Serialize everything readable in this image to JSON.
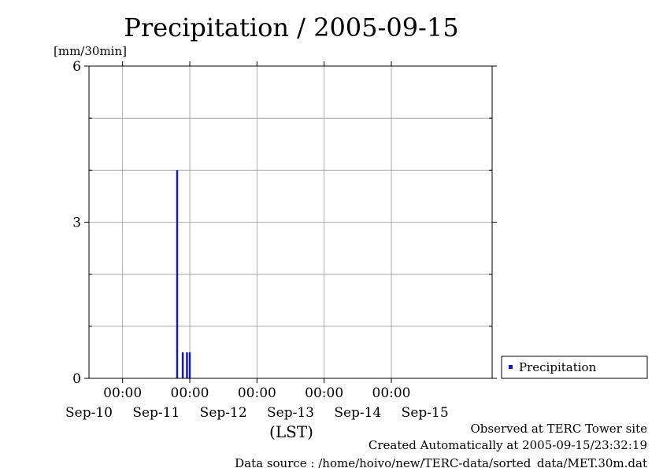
{
  "title": "Precipitation / 2005-09-15",
  "unit_label": "[mm/30min]",
  "x_axis_label": "(LST)",
  "footer": {
    "line1": "Observed at TERC Tower site",
    "line2": "Created Automatically at 2005-09-15/23:32:19",
    "line3": "Data source : /home/hoivo/new/TERC-data/sorted_data/MET.30m.dat"
  },
  "colors": {
    "series": "#1a1aa8",
    "grid": "#9a9a9a"
  },
  "chart_data": {
    "type": "bar",
    "title": "Precipitation / 2005-09-15",
    "ylabel": "[mm/30min]",
    "xlabel": "(LST)",
    "ylim": [
      0,
      6
    ],
    "y_ticks": [
      0,
      3,
      6
    ],
    "y_minor_gridlines": [
      1,
      2,
      4,
      5
    ],
    "xlim": [
      "2005-09-09 12:00",
      "2005-09-15 12:00"
    ],
    "x_gridlines": [
      "2005-09-10 00:00",
      "2005-09-11 00:00",
      "2005-09-12 00:00",
      "2005-09-13 00:00",
      "2005-09-14 00:00"
    ],
    "x_tick_times": [
      "00:00",
      "00:00",
      "00:00",
      "00:00",
      "00:00"
    ],
    "x_date_labels": [
      "Sep-10",
      "Sep-11",
      "Sep-12",
      "Sep-13",
      "Sep-14",
      "Sep-15"
    ],
    "grid": true,
    "legend": {
      "position": "right",
      "entries": [
        "Precipitation"
      ]
    },
    "series": [
      {
        "name": "Precipitation",
        "points": [
          {
            "time": "2005-09-10 19:30",
            "value": 4.0
          },
          {
            "time": "2005-09-10 21:30",
            "value": 0.5
          },
          {
            "time": "2005-09-10 23:00",
            "value": 0.5
          },
          {
            "time": "2005-09-11 00:00",
            "value": 0.5
          }
        ]
      }
    ]
  }
}
